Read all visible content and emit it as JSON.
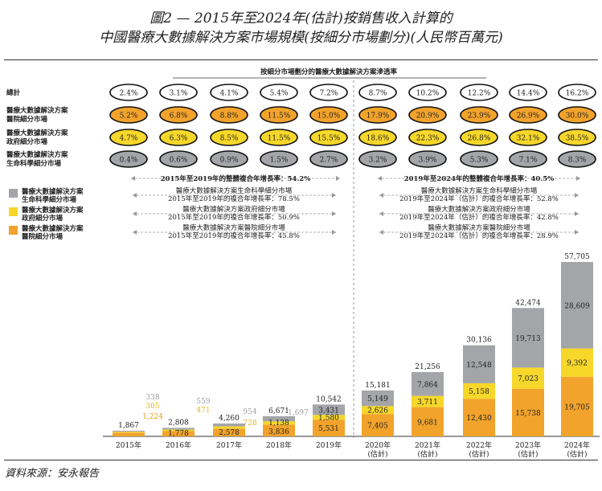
{
  "title": {
    "line1": "圖2 — 2015年至2024年(估計)按銷售收入計算的",
    "line2": "中國醫療大數據解決方案市場規模(按細分市場劃分)(人民幣百萬元)"
  },
  "source": "資料來源：安永報告",
  "colors": {
    "hospital": "#F2A32C",
    "government": "#F6D72A",
    "life": "#A3A5A8",
    "total": "#ffffff"
  },
  "penetration": {
    "header": "按細分市場劃分的醫療大數據解決方案滲透率",
    "rows": [
      {
        "key": "total",
        "label": [
          "總計"
        ],
        "values": [
          "2.4%",
          "3.1%",
          "4.1%",
          "5.4%",
          "7.2%",
          "8.7%",
          "10.2%",
          "12.2%",
          "14.4%",
          "16.2%"
        ]
      },
      {
        "key": "hospital",
        "label": [
          "醫療大數據解決方案",
          "醫院細分市場"
        ],
        "values": [
          "5.2%",
          "6.8%",
          "8.8%",
          "11.5%",
          "15.0%",
          "17.9%",
          "20.9%",
          "23.9%",
          "26.9%",
          "30.0%"
        ]
      },
      {
        "key": "government",
        "label": [
          "醫療大數據解決方案",
          "政府細分市場"
        ],
        "values": [
          "4.7%",
          "6.3%",
          "8.5%",
          "11.5%",
          "15.5%",
          "18.6%",
          "22.3%",
          "26.8%",
          "32.1%",
          "38.5%"
        ]
      },
      {
        "key": "life",
        "label": [
          "醫療大數據解決方案",
          "生命科學細分市場"
        ],
        "values": [
          "0.4%",
          "0.6%",
          "0.9%",
          "1.5%",
          "2.7%",
          "3.2%",
          "3.9%",
          "5.3%",
          "7.1%",
          "8.3%"
        ]
      }
    ]
  },
  "cagr": {
    "overall_left": "2015年至2019年的整體複合年增長率：54.2%",
    "overall_right": "2019年至2024年的整體複合年增長率：40.5%",
    "rows": [
      {
        "left": [
          "醫療大數據解決方案生命科學細分市場",
          "2015年至2019年的複合年增長率：78.5%"
        ],
        "right": [
          "醫療大數據解決方案生命科學細分市場",
          "2019年至2024年（估計）的複合年增長率：52.8%"
        ]
      },
      {
        "left": [
          "醫療大數據解決方案政府細分市場",
          "2015年至2019年的複合年增長率：50.9%"
        ],
        "right": [
          "醫療大數據解決方案政府細分市場",
          "2019年至2024年（估計）的複合年增長率：42.8%"
        ]
      },
      {
        "left": [
          "醫療大數據解決方案醫院細分市場",
          "2015年至2019年的複合年增長率：45.8%"
        ],
        "right": [
          "醫療大數據解決方案醫院細分市場",
          "2019年至2024年（估計）的複合年增長率：28.9%"
        ]
      }
    ]
  },
  "legend": [
    {
      "key": "life",
      "label": [
        "醫療大數據解決方案",
        "生命科學細分市場"
      ]
    },
    {
      "key": "government",
      "label": [
        "醫療大數據解決方案",
        "政府細分市場"
      ]
    },
    {
      "key": "hospital",
      "label": [
        "醫療大數據解決方案",
        "醫院細分市場"
      ]
    }
  ],
  "chart_data": {
    "type": "bar",
    "stacked": true,
    "categories": [
      "2015年",
      "2016年",
      "2017年",
      "2018年",
      "2019年",
      "2020年\n(估計)",
      "2021年\n(估計)",
      "2022年\n(估計)",
      "2023年\n(估計)",
      "2024年\n(估計)"
    ],
    "series": [
      {
        "name": "醫療大數據解決方案醫院細分市場",
        "key": "hospital",
        "values": [
          1224,
          1778,
          2578,
          3836,
          5531,
          7405,
          9681,
          12430,
          15738,
          19705
        ]
      },
      {
        "name": "醫療大數據解決方案政府細分市場",
        "key": "government",
        "values": [
          305,
          471,
          728,
          1138,
          1580,
          2626,
          3711,
          5158,
          7023,
          9392
        ]
      },
      {
        "name": "醫療大數據解決方案生命科學細分市場",
        "key": "life",
        "values": [
          338,
          559,
          954,
          1697,
          3431,
          5149,
          7864,
          12548,
          19713,
          28609
        ]
      }
    ],
    "totals": [
      1867,
      2808,
      4260,
      6671,
      10542,
      15181,
      21256,
      30136,
      42474,
      57705
    ],
    "ylim": [
      0,
      57705
    ]
  }
}
